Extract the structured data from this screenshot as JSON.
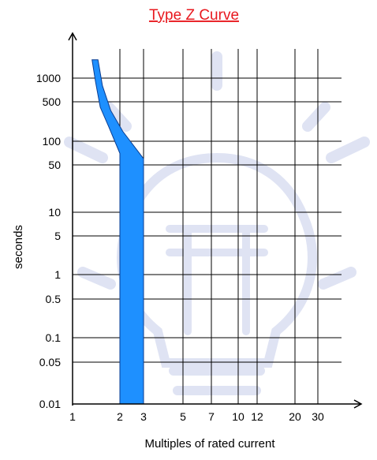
{
  "chart_data": {
    "type": "area",
    "title": "Type Z Curve",
    "xlabel": "Multiples of rated current",
    "ylabel": "seconds",
    "x_scale": "log",
    "y_scale": "log",
    "xlim": [
      1,
      45
    ],
    "ylim": [
      0.01,
      3000
    ],
    "x_ticks": [
      1,
      2,
      3,
      5,
      7,
      10,
      12,
      20,
      30
    ],
    "x_tick_labels": [
      "1",
      "2",
      "3",
      "5",
      "7",
      "10",
      "12",
      "20",
      "30"
    ],
    "y_ticks": [
      0.01,
      0.05,
      0.1,
      0.5,
      1,
      5,
      10,
      50,
      100,
      500,
      1000
    ],
    "y_tick_labels": [
      "0.01",
      "0.05",
      "0.1",
      "0.5",
      "1",
      "5",
      "10",
      "50",
      "100",
      "500",
      "1000"
    ],
    "grid": true,
    "series": [
      {
        "fill_color": "#1e90ff",
        "lower_boundary": [
          [
            1.33,
            2000
          ],
          [
            1.4,
            900
          ],
          [
            1.5,
            400
          ],
          [
            1.7,
            180
          ],
          [
            2,
            70
          ],
          [
            2,
            0.01
          ]
        ],
        "upper_boundary": [
          [
            1.45,
            2000
          ],
          [
            1.55,
            800
          ],
          [
            1.75,
            350
          ],
          [
            2.1,
            150
          ],
          [
            3,
            60
          ],
          [
            3,
            0.01
          ]
        ]
      }
    ]
  }
}
